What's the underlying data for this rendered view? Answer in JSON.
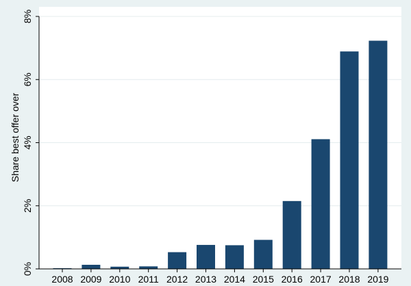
{
  "chart_data": {
    "type": "bar",
    "title": "",
    "xlabel": "",
    "ylabel": "Share best offer over",
    "categories": [
      "2008",
      "2009",
      "2010",
      "2011",
      "2012",
      "2013",
      "2014",
      "2015",
      "2016",
      "2017",
      "2018",
      "2019"
    ],
    "values": [
      0.02,
      0.13,
      0.07,
      0.08,
      0.53,
      0.76,
      0.75,
      0.92,
      2.15,
      4.11,
      6.89,
      7.23
    ],
    "y_unit": "%",
    "ylim": [
      0,
      8
    ],
    "y_ticks": [
      0,
      2,
      4,
      6,
      8
    ],
    "y_tick_labels": [
      "0%",
      "2%",
      "4%",
      "6%",
      "8%"
    ],
    "grid": true,
    "legend": "none",
    "colors": {
      "bar": "#1a476f",
      "plot_background": "#ffffff",
      "outer_background": "#eaf2f3",
      "grid": "#e4ecee",
      "axis": "#000000"
    }
  }
}
